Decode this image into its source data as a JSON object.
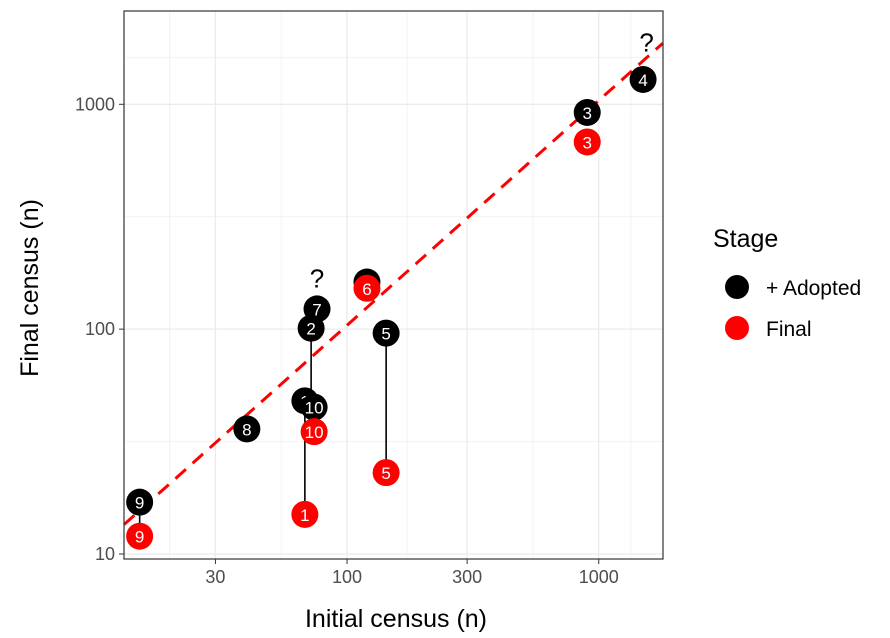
{
  "chart_data": {
    "type": "scatter",
    "xlabel": "Initial census (n)",
    "ylabel": "Final census (n)",
    "xscale": "log",
    "yscale": "log",
    "xlim": [
      13,
      1800
    ],
    "ylim": [
      9.5,
      2600
    ],
    "xticks": [
      30,
      100,
      300,
      1000
    ],
    "xtick_labels": [
      "30",
      "100",
      "300",
      "1000"
    ],
    "yticks": [
      10,
      100,
      1000
    ],
    "ytick_labels": [
      "10",
      "100",
      "1000"
    ],
    "grid": true,
    "legend": {
      "title": "Stage",
      "position": "right",
      "entries": [
        {
          "label": "+ Adopted",
          "color": "#000000"
        },
        {
          "label": "Final",
          "color": "#ff0000"
        }
      ]
    },
    "reference_line": {
      "description": "y = x",
      "color": "#ff0000",
      "style": "dashed"
    },
    "series": [
      {
        "name": "+ Adopted",
        "color": "#000000",
        "points": [
          {
            "label": "1",
            "x": 68,
            "y": 48
          },
          {
            "label": "2",
            "x": 72,
            "y": 101
          },
          {
            "label": "3",
            "x": 900,
            "y": 920
          },
          {
            "label": "4",
            "x": 1500,
            "y": 1290
          },
          {
            "label": "5",
            "x": 143,
            "y": 96
          },
          {
            "label": "6",
            "x": 120,
            "y": 162
          },
          {
            "label": "7",
            "x": 76,
            "y": 123
          },
          {
            "label": "8",
            "x": 40,
            "y": 36
          },
          {
            "label": "9",
            "x": 15,
            "y": 17
          },
          {
            "label": "10",
            "x": 74,
            "y": 45
          }
        ]
      },
      {
        "name": "Final",
        "color": "#ff0000",
        "points": [
          {
            "label": "1",
            "x": 68,
            "y": 15
          },
          {
            "label": "3",
            "x": 900,
            "y": 680
          },
          {
            "label": "5",
            "x": 143,
            "y": 23
          },
          {
            "label": "6",
            "x": 120,
            "y": 152
          },
          {
            "label": "9",
            "x": 15,
            "y": 12
          },
          {
            "label": "10",
            "x": 74,
            "y": 35
          }
        ]
      }
    ],
    "connectors": [
      {
        "label": "1",
        "x": 68,
        "y_from": 48,
        "y_to": 15
      },
      {
        "label": "2",
        "x": 72,
        "y_from": 101,
        "y_to": 48
      },
      {
        "label": "5",
        "x": 143,
        "y_from": 96,
        "y_to": 23
      },
      {
        "label": "9",
        "x": 15,
        "y_from": 17,
        "y_to": 12
      }
    ],
    "annotations": [
      {
        "text": "?",
        "x": 1550,
        "y": 1880
      },
      {
        "text": "?",
        "x": 76,
        "y": 168
      }
    ]
  }
}
